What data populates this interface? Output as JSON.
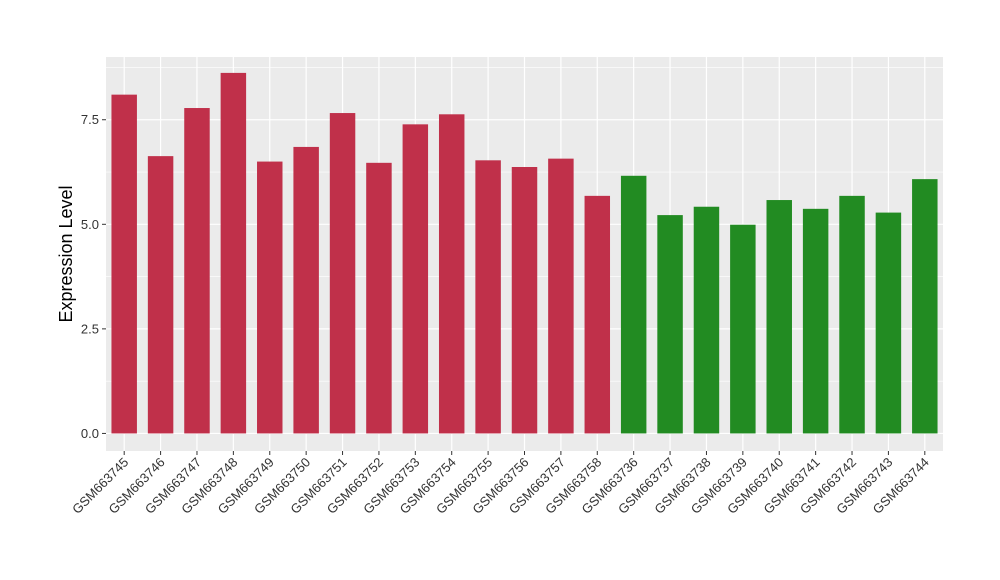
{
  "chart_data": {
    "type": "bar",
    "ylabel": "Expression Level",
    "xlabel": "",
    "ylim": [
      -0.42,
      9.0
    ],
    "yticks": [
      0.0,
      2.5,
      5.0,
      7.5
    ],
    "ytick_labels": [
      "0.0",
      "2.5",
      "5.0",
      "7.5"
    ],
    "grid": true,
    "categories": [
      "GSM663745",
      "GSM663746",
      "GSM663747",
      "GSM663748",
      "GSM663749",
      "GSM663750",
      "GSM663751",
      "GSM663752",
      "GSM663753",
      "GSM663754",
      "GSM663755",
      "GSM663756",
      "GSM663757",
      "GSM663758",
      "GSM663736",
      "GSM663737",
      "GSM663738",
      "GSM663739",
      "GSM663740",
      "GSM663741",
      "GSM663742",
      "GSM663743",
      "GSM663744"
    ],
    "values": [
      8.1,
      6.63,
      7.78,
      8.62,
      6.5,
      6.85,
      7.66,
      6.47,
      7.39,
      7.63,
      6.53,
      6.37,
      6.57,
      5.68,
      6.16,
      5.22,
      5.42,
      4.99,
      5.58,
      5.37,
      5.68,
      5.28,
      6.08
    ],
    "bar_colors": [
      "#C0304A",
      "#C0304A",
      "#C0304A",
      "#C0304A",
      "#C0304A",
      "#C0304A",
      "#C0304A",
      "#C0304A",
      "#C0304A",
      "#C0304A",
      "#C0304A",
      "#C0304A",
      "#C0304A",
      "#C0304A",
      "#228B22",
      "#228B22",
      "#228B22",
      "#228B22",
      "#228B22",
      "#228B22",
      "#228B22",
      "#228B22",
      "#228B22"
    ],
    "panel_background": "#EBEBEB",
    "grid_color": "#FFFFFF"
  }
}
